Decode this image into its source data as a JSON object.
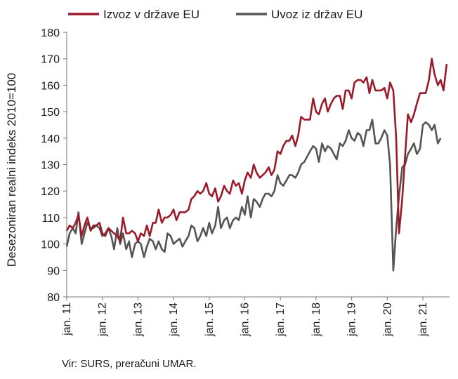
{
  "chart_data": {
    "type": "line",
    "title": "",
    "xlabel": "",
    "ylabel": "Desezoniran realni indeks 2010=100",
    "ylim": [
      80,
      180
    ],
    "yticks": [
      80,
      90,
      100,
      110,
      120,
      130,
      140,
      150,
      160,
      170,
      180
    ],
    "xlim": [
      2011.0,
      2021.75
    ],
    "xticks": [
      {
        "x": 2011,
        "label": "jan. 11"
      },
      {
        "x": 2012,
        "label": "jan. 12"
      },
      {
        "x": 2013,
        "label": "jan. 13"
      },
      {
        "x": 2014,
        "label": "jan. 14"
      },
      {
        "x": 2015,
        "label": "jan. 15"
      },
      {
        "x": 2016,
        "label": "jan. 16"
      },
      {
        "x": 2017,
        "label": "jan. 17"
      },
      {
        "x": 2018,
        "label": "jan. 18"
      },
      {
        "x": 2019,
        "label": "jan. 19"
      },
      {
        "x": 2020,
        "label": "jan. 20"
      },
      {
        "x": 2021,
        "label": "jan. 21"
      }
    ],
    "grid": false,
    "legend_position": "top",
    "series": [
      {
        "name": "Izvoz v države EU",
        "color": "#9b1a2a",
        "points": [
          [
            2011.0,
            105
          ],
          [
            2011.08,
            107
          ],
          [
            2011.17,
            106
          ],
          [
            2011.25,
            108
          ],
          [
            2011.33,
            111
          ],
          [
            2011.42,
            103
          ],
          [
            2011.5,
            107
          ],
          [
            2011.58,
            110
          ],
          [
            2011.67,
            105
          ],
          [
            2011.75,
            107
          ],
          [
            2011.83,
            107
          ],
          [
            2011.92,
            108
          ],
          [
            2012.0,
            104
          ],
          [
            2012.08,
            103
          ],
          [
            2012.17,
            106
          ],
          [
            2012.25,
            105
          ],
          [
            2012.33,
            104
          ],
          [
            2012.42,
            103
          ],
          [
            2012.5,
            101
          ],
          [
            2012.58,
            110
          ],
          [
            2012.67,
            104
          ],
          [
            2012.75,
            104
          ],
          [
            2012.83,
            105
          ],
          [
            2012.92,
            104
          ],
          [
            2013.0,
            101
          ],
          [
            2013.08,
            104
          ],
          [
            2013.17,
            103
          ],
          [
            2013.25,
            107
          ],
          [
            2013.33,
            103
          ],
          [
            2013.42,
            108
          ],
          [
            2013.5,
            108
          ],
          [
            2013.58,
            113
          ],
          [
            2013.67,
            108
          ],
          [
            2013.75,
            110
          ],
          [
            2013.83,
            110
          ],
          [
            2013.92,
            111
          ],
          [
            2014.0,
            113
          ],
          [
            2014.08,
            109
          ],
          [
            2014.17,
            112
          ],
          [
            2014.25,
            112
          ],
          [
            2014.33,
            112
          ],
          [
            2014.42,
            113
          ],
          [
            2014.5,
            117
          ],
          [
            2014.58,
            118
          ],
          [
            2014.67,
            120
          ],
          [
            2014.75,
            119
          ],
          [
            2014.83,
            120
          ],
          [
            2014.92,
            123
          ],
          [
            2015.0,
            119
          ],
          [
            2015.08,
            118
          ],
          [
            2015.17,
            121
          ],
          [
            2015.25,
            116
          ],
          [
            2015.33,
            118
          ],
          [
            2015.42,
            122
          ],
          [
            2015.5,
            120
          ],
          [
            2015.58,
            119
          ],
          [
            2015.67,
            124
          ],
          [
            2015.75,
            122
          ],
          [
            2015.83,
            123
          ],
          [
            2015.92,
            119
          ],
          [
            2016.0,
            124
          ],
          [
            2016.08,
            127
          ],
          [
            2016.17,
            125
          ],
          [
            2016.25,
            130
          ],
          [
            2016.33,
            127
          ],
          [
            2016.42,
            125
          ],
          [
            2016.5,
            126
          ],
          [
            2016.58,
            127
          ],
          [
            2016.67,
            129
          ],
          [
            2016.75,
            126
          ],
          [
            2016.83,
            128
          ],
          [
            2016.92,
            135
          ],
          [
            2017.0,
            134
          ],
          [
            2017.08,
            137
          ],
          [
            2017.17,
            139
          ],
          [
            2017.25,
            139
          ],
          [
            2017.33,
            141
          ],
          [
            2017.42,
            137
          ],
          [
            2017.5,
            141
          ],
          [
            2017.58,
            148
          ],
          [
            2017.67,
            147
          ],
          [
            2017.75,
            147
          ],
          [
            2017.83,
            147
          ],
          [
            2017.92,
            155
          ],
          [
            2018.0,
            150
          ],
          [
            2018.08,
            149
          ],
          [
            2018.17,
            153
          ],
          [
            2018.25,
            155
          ],
          [
            2018.33,
            150
          ],
          [
            2018.42,
            153
          ],
          [
            2018.5,
            155
          ],
          [
            2018.58,
            156
          ],
          [
            2018.67,
            156
          ],
          [
            2018.75,
            151
          ],
          [
            2018.83,
            158
          ],
          [
            2018.92,
            158
          ],
          [
            2019.0,
            155
          ],
          [
            2019.08,
            161
          ],
          [
            2019.17,
            162
          ],
          [
            2019.25,
            162
          ],
          [
            2019.33,
            161
          ],
          [
            2019.42,
            163
          ],
          [
            2019.5,
            157
          ],
          [
            2019.58,
            162
          ],
          [
            2019.67,
            158
          ],
          [
            2019.75,
            158
          ],
          [
            2019.83,
            158
          ],
          [
            2019.92,
            159
          ],
          [
            2020.0,
            155
          ],
          [
            2020.08,
            161
          ],
          [
            2020.17,
            158
          ],
          [
            2020.25,
            140
          ],
          [
            2020.33,
            104
          ],
          [
            2020.42,
            117
          ],
          [
            2020.5,
            133
          ],
          [
            2020.58,
            149
          ],
          [
            2020.67,
            146
          ],
          [
            2020.75,
            149
          ],
          [
            2020.83,
            153
          ],
          [
            2020.92,
            157
          ],
          [
            2021.0,
            157
          ],
          [
            2021.08,
            157
          ],
          [
            2021.17,
            162
          ],
          [
            2021.25,
            170
          ],
          [
            2021.33,
            164
          ],
          [
            2021.42,
            160
          ],
          [
            2021.5,
            162
          ],
          [
            2021.58,
            158
          ],
          [
            2021.67,
            168
          ]
        ]
      },
      {
        "name": "Uvoz iz držav EU",
        "color": "#555555",
        "points": [
          [
            2011.0,
            99
          ],
          [
            2011.08,
            104
          ],
          [
            2011.17,
            106
          ],
          [
            2011.25,
            104
          ],
          [
            2011.33,
            112
          ],
          [
            2011.42,
            100
          ],
          [
            2011.5,
            104
          ],
          [
            2011.58,
            108
          ],
          [
            2011.67,
            106
          ],
          [
            2011.75,
            106
          ],
          [
            2011.83,
            107
          ],
          [
            2011.92,
            106
          ],
          [
            2012.0,
            103
          ],
          [
            2012.08,
            104
          ],
          [
            2012.17,
            106
          ],
          [
            2012.25,
            103
          ],
          [
            2012.33,
            98
          ],
          [
            2012.42,
            106
          ],
          [
            2012.5,
            100
          ],
          [
            2012.58,
            104
          ],
          [
            2012.67,
            98
          ],
          [
            2012.75,
            101
          ],
          [
            2012.83,
            95
          ],
          [
            2012.92,
            100
          ],
          [
            2013.0,
            101
          ],
          [
            2013.08,
            100
          ],
          [
            2013.17,
            95
          ],
          [
            2013.25,
            99
          ],
          [
            2013.33,
            102
          ],
          [
            2013.42,
            101
          ],
          [
            2013.5,
            98
          ],
          [
            2013.58,
            101
          ],
          [
            2013.67,
            98
          ],
          [
            2013.75,
            97
          ],
          [
            2013.83,
            104
          ],
          [
            2013.92,
            103
          ],
          [
            2014.0,
            100
          ],
          [
            2014.08,
            101
          ],
          [
            2014.17,
            102
          ],
          [
            2014.25,
            99
          ],
          [
            2014.33,
            101
          ],
          [
            2014.42,
            103
          ],
          [
            2014.5,
            107
          ],
          [
            2014.58,
            106
          ],
          [
            2014.67,
            101
          ],
          [
            2014.75,
            103
          ],
          [
            2014.83,
            106
          ],
          [
            2014.92,
            103
          ],
          [
            2015.0,
            108
          ],
          [
            2015.08,
            104
          ],
          [
            2015.17,
            107
          ],
          [
            2015.25,
            114
          ],
          [
            2015.33,
            106
          ],
          [
            2015.42,
            109
          ],
          [
            2015.5,
            110
          ],
          [
            2015.58,
            106
          ],
          [
            2015.67,
            109
          ],
          [
            2015.75,
            110
          ],
          [
            2015.83,
            109
          ],
          [
            2015.92,
            114
          ],
          [
            2016.0,
            111
          ],
          [
            2016.08,
            118
          ],
          [
            2016.17,
            110
          ],
          [
            2016.25,
            117
          ],
          [
            2016.33,
            116
          ],
          [
            2016.42,
            114
          ],
          [
            2016.5,
            117
          ],
          [
            2016.58,
            119
          ],
          [
            2016.67,
            119
          ],
          [
            2016.75,
            118
          ],
          [
            2016.83,
            120
          ],
          [
            2016.92,
            126
          ],
          [
            2017.0,
            123
          ],
          [
            2017.08,
            122
          ],
          [
            2017.17,
            124
          ],
          [
            2017.25,
            126
          ],
          [
            2017.33,
            126
          ],
          [
            2017.42,
            125
          ],
          [
            2017.5,
            127
          ],
          [
            2017.58,
            130
          ],
          [
            2017.67,
            131
          ],
          [
            2017.75,
            133
          ],
          [
            2017.83,
            135
          ],
          [
            2017.92,
            137
          ],
          [
            2018.0,
            136
          ],
          [
            2018.08,
            131
          ],
          [
            2018.17,
            138
          ],
          [
            2018.25,
            135
          ],
          [
            2018.33,
            137
          ],
          [
            2018.42,
            136
          ],
          [
            2018.5,
            134
          ],
          [
            2018.58,
            132
          ],
          [
            2018.67,
            138
          ],
          [
            2018.75,
            137
          ],
          [
            2018.83,
            139
          ],
          [
            2018.92,
            143
          ],
          [
            2019.0,
            140
          ],
          [
            2019.08,
            139
          ],
          [
            2019.17,
            142
          ],
          [
            2019.25,
            141
          ],
          [
            2019.33,
            137
          ],
          [
            2019.42,
            143
          ],
          [
            2019.5,
            143
          ],
          [
            2019.58,
            147
          ],
          [
            2019.67,
            138
          ],
          [
            2019.75,
            138
          ],
          [
            2019.83,
            140
          ],
          [
            2019.92,
            143
          ],
          [
            2020.0,
            141
          ],
          [
            2020.08,
            130
          ],
          [
            2020.17,
            90
          ],
          [
            2020.25,
            106
          ],
          [
            2020.33,
            118
          ],
          [
            2020.42,
            129
          ],
          [
            2020.5,
            130
          ],
          [
            2020.58,
            134
          ],
          [
            2020.67,
            136
          ],
          [
            2020.75,
            138
          ],
          [
            2020.83,
            134
          ],
          [
            2020.92,
            136
          ],
          [
            2021.0,
            145
          ],
          [
            2021.08,
            146
          ],
          [
            2021.17,
            145
          ],
          [
            2021.25,
            143
          ],
          [
            2021.33,
            145
          ],
          [
            2021.42,
            138
          ],
          [
            2021.5,
            140
          ]
        ]
      }
    ]
  },
  "source": "Vir: SURS, preračuni UMAR."
}
